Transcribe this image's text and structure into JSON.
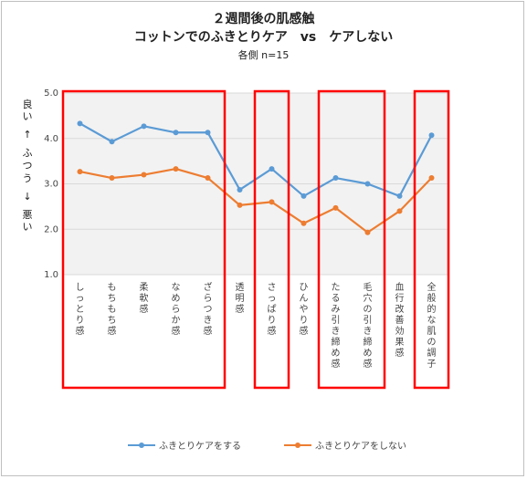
{
  "titles": {
    "line1": "２週間後の肌感触",
    "line2": "コットンでのふきとりケア　vs　ケアしない",
    "line3": "各側 n=15"
  },
  "y_axis_label": [
    "良",
    "い",
    "↑",
    "ふ",
    "つ",
    "う",
    "↓",
    "悪",
    "い"
  ],
  "colors": {
    "series1": "#5b9bd5",
    "series2": "#ed7d31",
    "plot_bg": "#f2f2f2",
    "highlight": "#ff0000"
  },
  "chart_data": {
    "type": "line",
    "title": "２週間後の肌感触 コットンでのふきとりケア vs ケアしない",
    "subtitle": "各側 n=15",
    "xlabel": "",
    "ylabel": "良い ↑ ふつう ↓ 悪い",
    "ylim": [
      1.0,
      5.0
    ],
    "yticks": [
      "1.0",
      "2.0",
      "3.0",
      "4.0",
      "5.0"
    ],
    "grid": true,
    "legend_position": "bottom",
    "categories": [
      "しっとり感",
      "もちもち感",
      "柔軟感",
      "なめらか感",
      "ざらつき感",
      "透明感",
      "さっぱり感",
      "ひんやり感",
      "たるみ引き締め感",
      "毛穴の引き締め感",
      "血行改善効果感",
      "全般的な肌の調子"
    ],
    "series": [
      {
        "name": "ふきとりケアをする",
        "values": [
          4.33,
          3.93,
          4.27,
          4.13,
          4.13,
          2.87,
          3.33,
          2.73,
          3.13,
          3.0,
          2.73,
          4.07
        ]
      },
      {
        "name": "ふきとりケアをしない",
        "values": [
          3.27,
          3.13,
          3.2,
          3.33,
          3.13,
          2.53,
          2.6,
          2.13,
          2.47,
          1.93,
          2.4,
          3.13
        ]
      }
    ],
    "highlight_groups": [
      [
        0,
        4
      ],
      [
        6,
        6
      ],
      [
        8,
        9
      ],
      [
        11,
        11
      ]
    ]
  }
}
